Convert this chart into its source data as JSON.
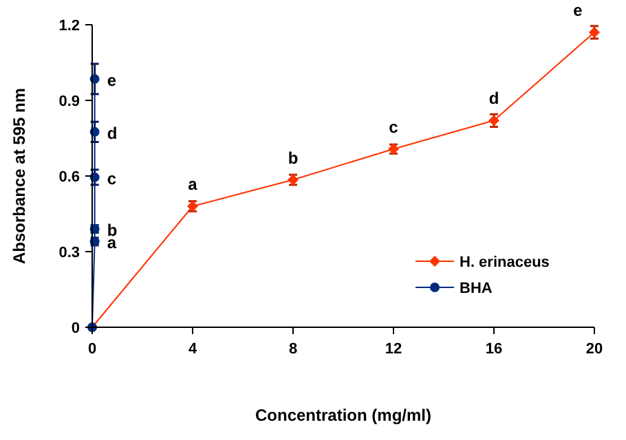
{
  "chart_data": {
    "type": "line",
    "xlabel": "Concentration (mg/ml)",
    "ylabel": "Absorbance at 595 nm",
    "xlim": [
      0,
      20
    ],
    "xticks": [
      0,
      4,
      8,
      12,
      16,
      20
    ],
    "ylim": [
      0,
      1.2
    ],
    "yticks": [
      0,
      0.3,
      0.6,
      0.9,
      1.2
    ],
    "grid": false,
    "legend": "bottom right",
    "series": [
      {
        "name": "H. erinaceus",
        "color": "#ff3300",
        "marker": "diamond",
        "x": [
          0,
          4,
          8,
          12,
          16,
          20
        ],
        "values": [
          0,
          0.48,
          0.585,
          0.707,
          0.82,
          1.17
        ],
        "errors": [
          null,
          0.02,
          0.02,
          0.018,
          0.025,
          0.025
        ]
      },
      {
        "name": "BHA",
        "color": "#002b80",
        "marker": "circle",
        "x": [
          0,
          0.1,
          0.1,
          0.1,
          0.1,
          0.1
        ],
        "values": [
          0,
          0.34,
          0.39,
          0.595,
          0.775,
          0.985
        ],
        "errors": [
          null,
          0.015,
          0.015,
          0.03,
          0.04,
          0.06
        ]
      }
    ],
    "annotations": [
      {
        "text": "a",
        "x": 4,
        "y": 0.48
      },
      {
        "text": "b",
        "x": 8,
        "y": 0.585
      },
      {
        "text": "c",
        "x": 12,
        "y": 0.707
      },
      {
        "text": "d",
        "x": 16,
        "y": 0.82
      },
      {
        "text": "e",
        "x": 20,
        "y": 1.17
      },
      {
        "text": "a",
        "x": 0.1,
        "y": 0.34
      },
      {
        "text": "b",
        "x": 0.1,
        "y": 0.39
      },
      {
        "text": "c",
        "x": 0.1,
        "y": 0.595
      },
      {
        "text": "d",
        "x": 0.1,
        "y": 0.775
      },
      {
        "text": "e",
        "x": 0.1,
        "y": 0.985
      }
    ]
  }
}
